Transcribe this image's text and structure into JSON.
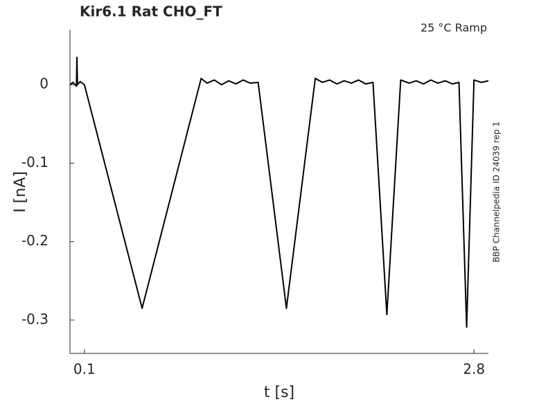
{
  "chart_data": {
    "type": "line",
    "title": "Kir6.1  Rat  CHO_FT",
    "annotation": "25 °C  Ramp",
    "side_note": "BBP Channelpedia ID 24039 rep 1",
    "xlabel": "t [s]",
    "ylabel": "I [nA]",
    "xlim": [
      0,
      2.9
    ],
    "ylim": [
      -0.3425,
      0.07
    ],
    "xticks": [
      0.1,
      2.8
    ],
    "yticks": [
      0,
      -0.1,
      -0.2,
      -0.3
    ],
    "x": [
      0,
      0.02,
      0.045,
      0.048,
      0.052,
      0.07,
      0.1,
      0.5,
      0.909,
      0.95,
      1.0,
      1.05,
      1.1,
      1.15,
      1.2,
      1.25,
      1.304,
      1.5,
      1.7,
      1.75,
      1.8,
      1.85,
      1.9,
      1.95,
      2.0,
      2.05,
      2.1,
      2.196,
      2.292,
      2.35,
      2.4,
      2.45,
      2.5,
      2.55,
      2.6,
      2.65,
      2.696,
      2.749,
      2.8,
      2.85,
      2.9
    ],
    "series": [
      {
        "color": "#000000",
        "values": [
          0,
          0.003,
          -0.002,
          0.035,
          0,
          0.004,
          0,
          -0.285,
          0.008,
          0.002,
          0.006,
          0,
          0.005,
          0.001,
          0.006,
          0.002,
          0.003,
          -0.285,
          0.008,
          0.003,
          0.006,
          0.001,
          0.005,
          0.002,
          0.006,
          0.001,
          0.003,
          -0.293,
          0.006,
          0.002,
          0.005,
          0.001,
          0.006,
          0.002,
          0.005,
          0.001,
          0.003,
          -0.309,
          0.006,
          0.003,
          0.005
        ]
      }
    ]
  }
}
